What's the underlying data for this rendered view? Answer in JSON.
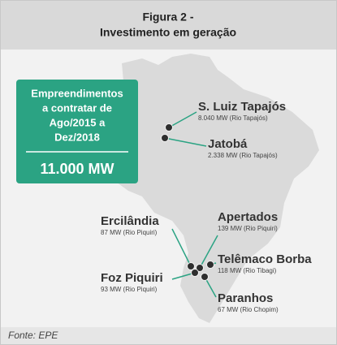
{
  "header": {
    "title": [
      "Figura 2 -",
      "Investimento em geração"
    ]
  },
  "highlight": {
    "text": [
      "Empreendimentos",
      "a contratar de",
      "Ago/2015 a",
      "Dez/2018"
    ],
    "total": "11.000 MW"
  },
  "plants": [
    {
      "name": "S. Luiz Tapajós",
      "detail": "8.040 MW (Rio Tapajós)"
    },
    {
      "name": "Jatobá",
      "detail": "2.338 MW (Rio Tapajós)"
    },
    {
      "name": "Ercilândia",
      "detail": "87 MW (Rio Piquiri)"
    },
    {
      "name": "Apertados",
      "detail": "139 MW (Rio Piquiri)"
    },
    {
      "name": "Telêmaco Borba",
      "detail": "118 MW (Rio Tibagi)"
    },
    {
      "name": "Foz Piquiri",
      "detail": "93 MW (Rio Piquiri)"
    },
    {
      "name": "Paranhos",
      "detail": "67 MW (Rio Chopim)"
    }
  ],
  "source": "Fonte: EPE"
}
